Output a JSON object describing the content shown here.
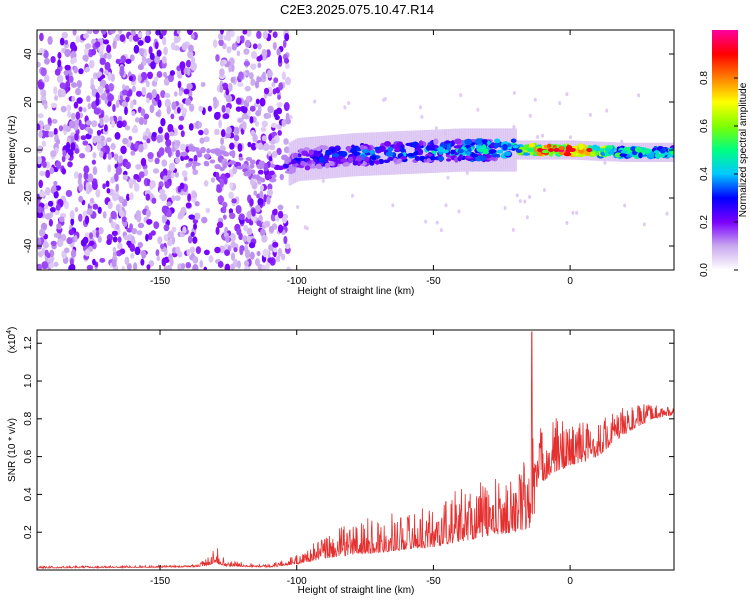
{
  "title": "C2E3.2025.075.10.47.R14",
  "chart_data": [
    {
      "type": "heatmap",
      "xlabel": "Height of straight line (km)",
      "ylabel": "Frequency (Hz)",
      "xlim": [
        -195,
        38
      ],
      "ylim": [
        -50,
        50
      ],
      "xticks": [
        -150,
        -100,
        -50,
        0
      ],
      "yticks": [
        -40,
        -20,
        0,
        20,
        40
      ],
      "colorbar": {
        "label": "Normalized spectral amplitude",
        "range": [
          0.0,
          1.0
        ],
        "ticks": [
          0.0,
          0.2,
          0.4,
          0.6,
          0.8
        ],
        "colors": [
          "#ffffff",
          "#c9a8ee",
          "#7a00ff",
          "#0000ff",
          "#00c8ff",
          "#00ff80",
          "#80ff00",
          "#ffff00",
          "#ff8000",
          "#ff0000",
          "#ff00a0"
        ]
      },
      "signal_track": [
        {
          "x": -140,
          "y": -3,
          "amp": 0.25
        },
        {
          "x": -130,
          "y": -3,
          "amp": 0.22
        },
        {
          "x": -110,
          "y": -10,
          "amp": 0.22
        },
        {
          "x": -100,
          "y": -4,
          "amp": 0.32
        },
        {
          "x": -80,
          "y": -2,
          "amp": 0.4
        },
        {
          "x": -60,
          "y": -1,
          "amp": 0.42
        },
        {
          "x": -40,
          "y": 0,
          "amp": 0.48
        },
        {
          "x": -20,
          "y": 0,
          "amp": 0.55
        },
        {
          "x": -10,
          "y": 0,
          "amp": 0.92
        },
        {
          "x": 0,
          "y": 0,
          "amp": 0.95
        },
        {
          "x": 20,
          "y": -1,
          "amp": 0.55
        },
        {
          "x": 38,
          "y": -1,
          "amp": 0.5
        }
      ],
      "noise_region": [
        -195,
        -103
      ]
    },
    {
      "type": "line",
      "xlabel": "Height of straight line (km)",
      "ylabel": "SNR (10 * v/v)",
      "scale_label": "(x10",
      "scale_exp": "4",
      "xlim": [
        -195,
        38
      ],
      "ylim": [
        0,
        1.27
      ],
      "xticks": [
        -150,
        -100,
        -50,
        0
      ],
      "yticks": [
        0.2,
        0.4,
        0.6,
        0.8,
        1.0,
        1.2
      ],
      "color": "#e53030",
      "envelope": {
        "x": [
          -195,
          -140,
          -133,
          -130,
          -126,
          -110,
          -100,
          -90,
          -80,
          -70,
          -60,
          -50,
          -40,
          -30,
          -20,
          -15,
          -14,
          -13,
          -12,
          -5,
          0,
          10,
          20,
          30,
          38
        ],
        "base": [
          0.01,
          0.015,
          0.02,
          0.04,
          0.02,
          0.015,
          0.03,
          0.06,
          0.08,
          0.09,
          0.11,
          0.12,
          0.15,
          0.18,
          0.2,
          0.22,
          0.25,
          0.3,
          0.45,
          0.52,
          0.55,
          0.6,
          0.72,
          0.8,
          0.82
        ],
        "amp": [
          0.01,
          0.01,
          0.04,
          0.1,
          0.03,
          0.015,
          0.05,
          0.12,
          0.18,
          0.2,
          0.2,
          0.22,
          0.3,
          0.3,
          0.3,
          0.45,
          1.0,
          0.35,
          0.3,
          0.3,
          0.25,
          0.2,
          0.15,
          0.08,
          0.05
        ]
      }
    }
  ]
}
